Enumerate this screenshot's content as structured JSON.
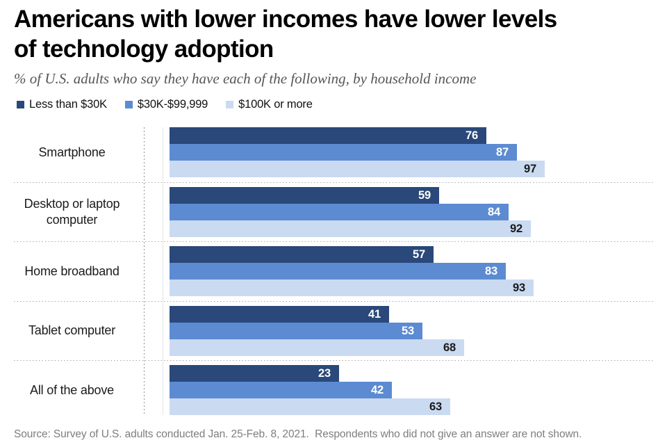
{
  "title": {
    "line1": "Americans with lower incomes have lower levels",
    "line2": "of technology adoption"
  },
  "subtitle": "% of U.S. adults who say they have each of the following, by household income",
  "legend": [
    {
      "label": "Less than $30K",
      "color": "#2a4879"
    },
    {
      "label": "$30K-$99,999",
      "color": "#5c8bd1"
    },
    {
      "label": "$100K or more",
      "color": "#cadaf1"
    }
  ],
  "chart_data": {
    "type": "bar",
    "orientation": "horizontal",
    "title": "Americans with lower incomes have lower levels of technology adoption",
    "subtitle": "% of U.S. adults who say they have each of the following, by household income",
    "categories": [
      "Smartphone",
      "Desktop or laptop computer",
      "Home broadband",
      "Tablet computer",
      "All of the above"
    ],
    "series": [
      {
        "name": "Less than $30K",
        "color": "#2a4879",
        "label_color": "#ffffff",
        "values": [
          76,
          59,
          57,
          41,
          23
        ]
      },
      {
        "name": "$30K-$99,999",
        "color": "#5c8bd1",
        "label_color": "#ffffff",
        "values": [
          87,
          84,
          83,
          53,
          42
        ]
      },
      {
        "name": "$100K or more",
        "color": "#cadaf1",
        "label_color": "#1a1a1a",
        "values": [
          97,
          92,
          93,
          68,
          63
        ]
      }
    ],
    "xlim": [
      0,
      100
    ],
    "grid": false,
    "legend_position": "top",
    "value_labels": "inside-end"
  },
  "source": "Source: Survey of U.S. adults conducted Jan. 25-Feb. 8, 2021.  Respondents who did not give an answer are not shown."
}
